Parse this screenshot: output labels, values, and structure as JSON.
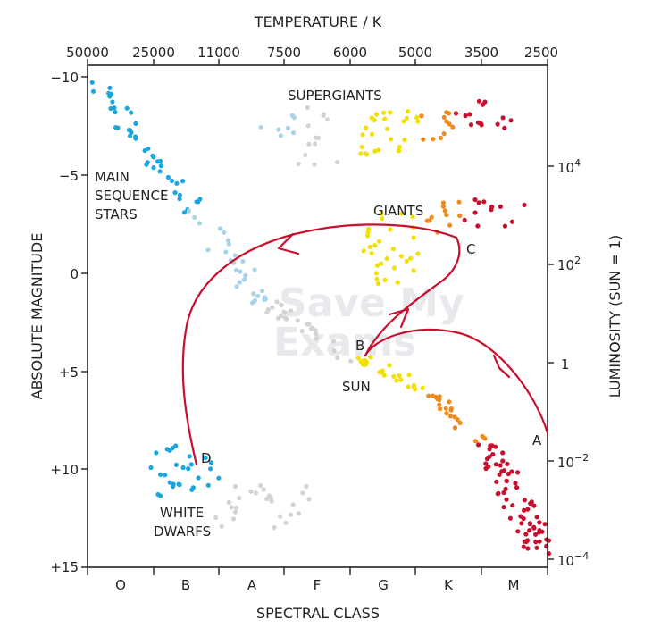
{
  "title": "TEMPERATURE / K",
  "temperature_ticks": [
    "50000",
    "25000",
    "11000",
    "7500",
    "6000",
    "5000",
    "3500",
    "2500"
  ],
  "x_axis_label": "SPECTRAL CLASS",
  "spectral_classes": [
    "O",
    "B",
    "A",
    "F",
    "G",
    "K",
    "M"
  ],
  "y_axis_left_label": "ABSOLUTE MAGNITUDE",
  "magnitude_ticks": [
    "−10",
    "−5",
    "0",
    "+5",
    "+10",
    "+15"
  ],
  "y_axis_right_label": "LUMINOSITY (SUN = 1)",
  "luminosity_ticks": [
    {
      "base": "10",
      "exp": "4"
    },
    {
      "base": "10",
      "exp": "2"
    },
    {
      "base": "1",
      "exp": ""
    },
    {
      "base": "10",
      "exp": "−2"
    },
    {
      "base": "10",
      "exp": "−4"
    }
  ],
  "regions": {
    "supergiants": "SUPERGIANTS",
    "main_sequence": [
      "MAIN",
      "SEQUENCE",
      "STARS"
    ],
    "giants": "GIANTS",
    "white_dwarfs": [
      "WHITE",
      "DWARFS"
    ],
    "sun": "SUN"
  },
  "points": {
    "a": "A",
    "b": "B",
    "c": "C",
    "d": "D"
  },
  "watermark": [
    "Save My",
    "Exams"
  ],
  "colors": {
    "blue": "#1aa7e0",
    "light_blue": "#a9d3e6",
    "grey": "#d3d3d3",
    "yellow": "#f4e100",
    "orange": "#f08a1c",
    "red": "#c8102e",
    "path": "#c8102e"
  }
}
